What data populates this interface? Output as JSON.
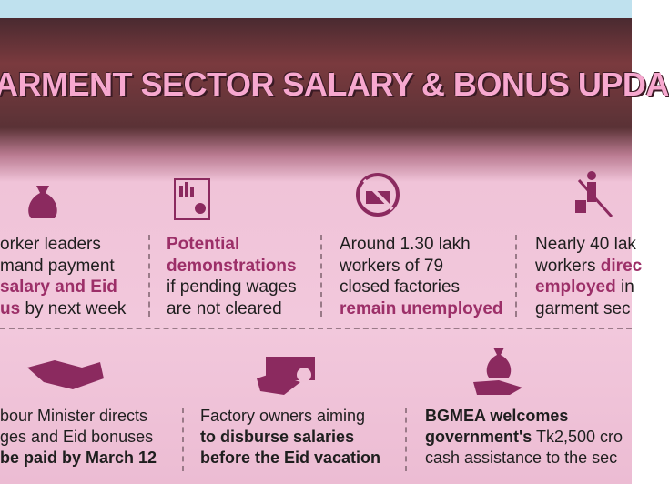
{
  "header": {
    "title": "ARMENT SECTOR SALARY & BONUS UPDA"
  },
  "items": [
    {
      "lines": [
        [
          {
            "text": "orker leaders"
          }
        ],
        [
          {
            "text": "mand payment"
          }
        ],
        [
          {
            "text": "salary and Eid",
            "bold": true,
            "color": "#9c2f68"
          }
        ],
        [
          {
            "text": "us",
            "bold": true,
            "color": "#9c2f68"
          },
          {
            "text": " by next week"
          }
        ]
      ]
    },
    {
      "lines": [
        [
          {
            "text": "Potential",
            "bold": true,
            "color": "#9c2f68"
          }
        ],
        [
          {
            "text": "demonstrations",
            "bold": true,
            "color": "#9c2f68"
          }
        ],
        [
          {
            "text": "if pending wages"
          }
        ],
        [
          {
            "text": "are not cleared"
          }
        ]
      ]
    },
    {
      "lines": [
        [
          {
            "text": "Around 1.30 lakh"
          }
        ],
        [
          {
            "text": "workers of 79"
          }
        ],
        [
          {
            "text": "closed factories"
          }
        ],
        [
          {
            "text": "remain unemployed",
            "bold": true,
            "color": "#9c2f68"
          }
        ]
      ]
    },
    {
      "lines": [
        [
          {
            "text": "Nearly 40 lak"
          }
        ],
        [
          {
            "text": "workers "
          },
          {
            "text": "direc",
            "bold": true,
            "color": "#9c2f68"
          }
        ],
        [
          {
            "text": "employed",
            "bold": true,
            "color": "#9c2f68"
          },
          {
            "text": " in"
          }
        ],
        [
          {
            "text": "garment sec"
          }
        ]
      ]
    },
    {
      "lines": [
        [
          {
            "text": "bour Minister directs"
          }
        ],
        [
          {
            "text": "ges and Eid bonuses"
          }
        ],
        [
          {
            "text": "be paid by March 12",
            "bold": true
          }
        ]
      ]
    },
    {
      "lines": [
        [
          {
            "text": "Factory owners aiming"
          }
        ],
        [
          {
            "text": "to disburse salaries",
            "bold": true
          }
        ],
        [
          {
            "text": "before the Eid vacation",
            "bold": true
          }
        ]
      ]
    },
    {
      "lines": [
        [
          {
            "text": "BGMEA welcomes",
            "bold": true
          }
        ],
        [
          {
            "text": "government's",
            "bold": true
          },
          {
            "text": " Tk2,500 cro"
          }
        ],
        [
          {
            "text": "cash assistance to the sec"
          }
        ]
      ]
    }
  ]
}
